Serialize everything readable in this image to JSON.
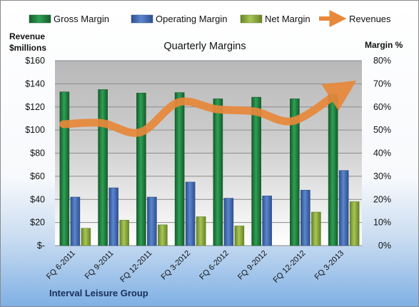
{
  "chart_data": {
    "type": "bar",
    "title": "Quarterly Margins",
    "categories": [
      "FQ 6-2011",
      "FQ 9-2011",
      "FQ 12-2011",
      "FQ 3-2012",
      "FQ 6-2012",
      "FQ 9-2012",
      "FQ 12-2012",
      "FQ 3-2013"
    ],
    "series": [
      {
        "name": "Gross Margin",
        "type": "bar",
        "axis": "right",
        "color": "#1f7a3c",
        "values": [
          66.5,
          67.5,
          66.0,
          66.2,
          63.5,
          64.2,
          63.5,
          65.5
        ]
      },
      {
        "name": "Operating Margin",
        "type": "bar",
        "axis": "right",
        "color": "#4169b0",
        "values": [
          21.0,
          25.0,
          21.0,
          27.5,
          20.5,
          21.5,
          24.0,
          32.5
        ]
      },
      {
        "name": "Net Margin",
        "type": "bar",
        "axis": "right",
        "color": "#8fae3c",
        "values": [
          7.5,
          11.0,
          9.0,
          12.5,
          8.5,
          0,
          14.5,
          19.0
        ]
      },
      {
        "name": "Revenues",
        "type": "line",
        "axis": "left",
        "color": "#e8883a",
        "values": [
          105,
          106,
          98,
          124,
          118,
          116,
          108,
          134
        ]
      }
    ],
    "y_left": {
      "label_line1": "Revenue",
      "label_line2": "$millions",
      "min": 0,
      "max": 160,
      "ticks": [
        "$-",
        "$20",
        "$40",
        "$60",
        "$80",
        "$100",
        "$120",
        "$140",
        "$160"
      ]
    },
    "y_right": {
      "label": "Margin %",
      "min": 0,
      "max": 80,
      "ticks": [
        "0%",
        "10%",
        "20%",
        "30%",
        "40%",
        "50%",
        "60%",
        "70%",
        "80%"
      ]
    },
    "legend": {
      "position": "top",
      "items": [
        "Gross Margin",
        "Operating Margin",
        "Net Margin",
        "Revenues"
      ]
    },
    "grid": true,
    "footer": "Interval Leisure Group"
  }
}
